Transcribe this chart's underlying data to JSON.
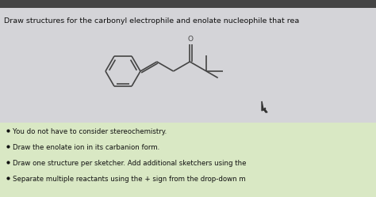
{
  "title_text": "Draw structures for the carbonyl electrophile and enolate nucleophile that rea",
  "title_fontsize": 6.8,
  "title_color": "#111111",
  "bg_color_top": "#c8c8cc",
  "bg_color_area": "#d4d4d8",
  "bg_color_bottom": "#d9e8c4",
  "bullet_points": [
    "You do not have to consider stereochemistry.",
    "Draw the enolate ion in its carbanion form.",
    "Draw one structure per sketcher. Add additional sketchers using the",
    "Separate multiple reactants using the + sign from the drop-down m"
  ],
  "bullet_fontsize": 6.2,
  "bullet_color": "#111111",
  "molecule_color": "#444444",
  "top_bar_color": "#444444",
  "top_bar_height": 10
}
